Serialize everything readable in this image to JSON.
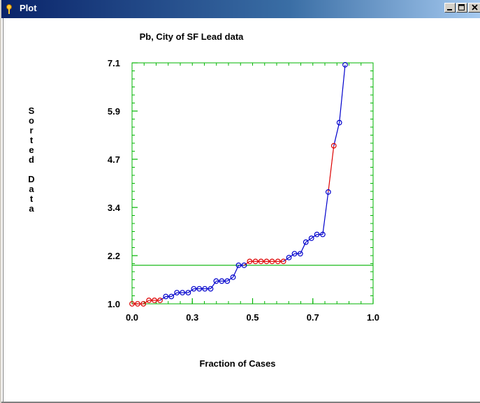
{
  "window": {
    "title": "Plot"
  },
  "chart_data": {
    "type": "line",
    "title": "Pb, City of SF Lead data",
    "xlabel": "Fraction of Cases",
    "ylabel": "Sorted Data",
    "xlim": [
      0.0,
      1.0
    ],
    "ylim": [
      0.9,
      7.15
    ],
    "xticks": [
      "0.0",
      "0.3",
      "0.5",
      "0.7",
      "1.0"
    ],
    "yticks": [
      "1.0",
      "2.2",
      "3.4",
      "4.7",
      "5.9",
      "7.1"
    ],
    "reference_line": {
      "y": 1.9,
      "color": "#00b400"
    },
    "colors": {
      "blue": "#0000cc",
      "red": "#dd0000"
    },
    "points": [
      {
        "x": 0.0,
        "y": 0.9,
        "c": "red"
      },
      {
        "x": 0.023,
        "y": 0.9,
        "c": "red"
      },
      {
        "x": 0.047,
        "y": 0.9,
        "c": "red"
      },
      {
        "x": 0.07,
        "y": 0.99,
        "c": "red"
      },
      {
        "x": 0.093,
        "y": 0.99,
        "c": "red"
      },
      {
        "x": 0.116,
        "y": 0.99,
        "c": "red"
      },
      {
        "x": 0.14,
        "y": 1.09,
        "c": "blue"
      },
      {
        "x": 0.163,
        "y": 1.09,
        "c": "blue"
      },
      {
        "x": 0.186,
        "y": 1.19,
        "c": "blue"
      },
      {
        "x": 0.209,
        "y": 1.19,
        "c": "blue"
      },
      {
        "x": 0.233,
        "y": 1.19,
        "c": "blue"
      },
      {
        "x": 0.256,
        "y": 1.29,
        "c": "blue"
      },
      {
        "x": 0.279,
        "y": 1.29,
        "c": "blue"
      },
      {
        "x": 0.302,
        "y": 1.29,
        "c": "blue"
      },
      {
        "x": 0.326,
        "y": 1.29,
        "c": "blue"
      },
      {
        "x": 0.349,
        "y": 1.49,
        "c": "blue"
      },
      {
        "x": 0.372,
        "y": 1.49,
        "c": "blue"
      },
      {
        "x": 0.395,
        "y": 1.49,
        "c": "blue"
      },
      {
        "x": 0.419,
        "y": 1.59,
        "c": "blue"
      },
      {
        "x": 0.442,
        "y": 1.9,
        "c": "blue"
      },
      {
        "x": 0.465,
        "y": 1.9,
        "c": "blue"
      },
      {
        "x": 0.488,
        "y": 2.0,
        "c": "red"
      },
      {
        "x": 0.512,
        "y": 2.0,
        "c": "red"
      },
      {
        "x": 0.535,
        "y": 2.0,
        "c": "red"
      },
      {
        "x": 0.558,
        "y": 2.0,
        "c": "red"
      },
      {
        "x": 0.581,
        "y": 2.0,
        "c": "red"
      },
      {
        "x": 0.605,
        "y": 2.0,
        "c": "red"
      },
      {
        "x": 0.628,
        "y": 2.0,
        "c": "red"
      },
      {
        "x": 0.651,
        "y": 2.1,
        "c": "blue"
      },
      {
        "x": 0.674,
        "y": 2.2,
        "c": "blue"
      },
      {
        "x": 0.698,
        "y": 2.2,
        "c": "blue"
      },
      {
        "x": 0.721,
        "y": 2.5,
        "c": "blue"
      },
      {
        "x": 0.744,
        "y": 2.6,
        "c": "blue"
      },
      {
        "x": 0.767,
        "y": 2.7,
        "c": "blue"
      },
      {
        "x": 0.791,
        "y": 2.7,
        "c": "blue"
      },
      {
        "x": 0.814,
        "y": 3.8,
        "c": "blue"
      },
      {
        "x": 0.837,
        "y": 5.0,
        "c": "red"
      },
      {
        "x": 0.86,
        "y": 5.6,
        "c": "blue"
      },
      {
        "x": 0.884,
        "y": 7.1,
        "c": "blue"
      }
    ]
  }
}
